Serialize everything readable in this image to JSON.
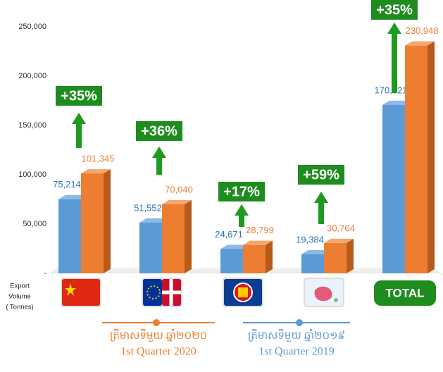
{
  "chart_data": {
    "type": "bar",
    "categories": [
      null,
      null,
      null,
      null,
      "TOTAL"
    ],
    "series": [
      {
        "name": "1st Quarter 2019",
        "name_km": "ត្រីមាសទីមួយ ឆ្នាំ២០១៩",
        "color": "#5b9bd5",
        "values": [
          75214,
          51552,
          24671,
          19384,
          170821
        ],
        "value_labels": [
          "75,214",
          "51,552",
          "24,671",
          "19,384",
          "170,821"
        ]
      },
      {
        "name": "1st Quarter 2020",
        "name_km": "ត្រីមាសទីមួយ ឆ្នាំ២០២០",
        "color": "#ed7d31",
        "values": [
          101345,
          70040,
          28799,
          30764,
          230948
        ],
        "value_labels": [
          "101,345",
          "70,040",
          "28,799",
          "30,764",
          "230,948"
        ]
      }
    ],
    "annotations": [
      "+35%",
      "+36%",
      "+17%",
      "+59%",
      "+35%"
    ],
    "y_label": [
      "Export",
      "Volume",
      "( Tonnes)"
    ],
    "ylim": [
      0,
      250000
    ],
    "yticks": [
      {
        "value": 0,
        "label": "-"
      },
      {
        "value": 50000,
        "label": "50,000"
      },
      {
        "value": 100000,
        "label": "100,000"
      },
      {
        "value": 150000,
        "label": "150,000"
      },
      {
        "value": 200000,
        "label": "200,000"
      },
      {
        "value": 250000,
        "label": "250,000"
      }
    ]
  }
}
